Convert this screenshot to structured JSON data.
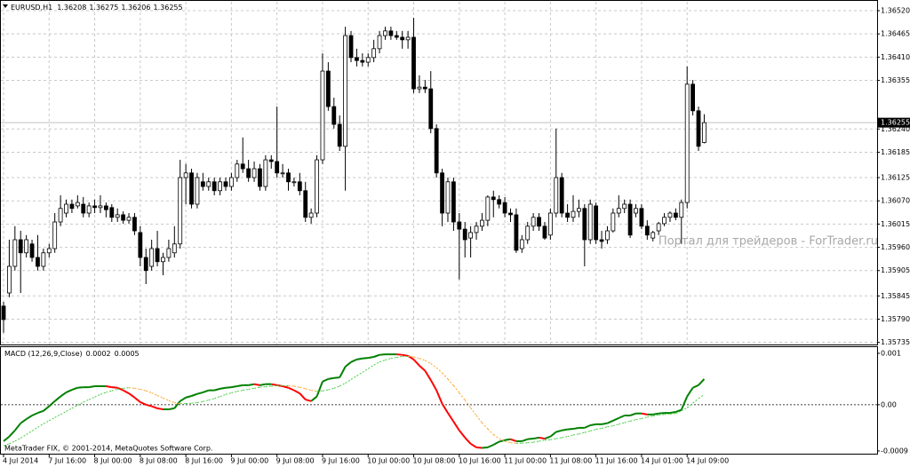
{
  "footer": "MetaTrader FIX, © 2001-2014, MetaQuotes Software Corp.",
  "chart_data": [
    {
      "type": "candlestick",
      "title": "EURUSD,H1",
      "categories": [
        "4 Jul 2014",
        null,
        null,
        null,
        null,
        null,
        null,
        null,
        "7 Jul 16:00",
        null,
        null,
        null,
        null,
        null,
        null,
        null,
        "8 Jul 00:00",
        null,
        null,
        null,
        null,
        null,
        null,
        null,
        "8 Jul 08:00",
        null,
        null,
        null,
        null,
        null,
        null,
        null,
        "8 Jul 16:00",
        null,
        null,
        null,
        null,
        null,
        null,
        null,
        "9 Jul 00:00",
        null,
        null,
        null,
        null,
        null,
        null,
        null,
        "9 Jul 08:00",
        null,
        null,
        null,
        null,
        null,
        null,
        null,
        "9 Jul 16:00",
        null,
        null,
        null,
        null,
        null,
        null,
        null,
        "10 Jul 00:00",
        null,
        null,
        null,
        null,
        null,
        null,
        null,
        "10 Jul 08:00",
        null,
        null,
        null,
        null,
        null,
        null,
        null,
        "10 Jul 16:00",
        null,
        null,
        null,
        null,
        null,
        null,
        null,
        "11 Jul 00:00",
        null,
        null,
        null,
        null,
        null,
        null,
        null,
        "11 Jul 08:00",
        null,
        null,
        null,
        null,
        null,
        null,
        null,
        "11 Jul 16:00",
        null,
        null,
        null,
        null,
        null,
        null,
        null,
        "14 Jul 01:00",
        null,
        null,
        null,
        null,
        null,
        null,
        null,
        "14 Jul 09:00",
        null,
        null,
        null
      ],
      "open": [
        1.35821,
        1.35852,
        1.35915,
        1.35978,
        1.35947,
        1.35968,
        1.35936,
        1.35915,
        1.35947,
        1.35957,
        1.3602,
        1.36041,
        1.36062,
        1.36058,
        1.36062,
        1.36041,
        1.36058,
        1.36054,
        1.36058,
        1.36054,
        1.36031,
        1.36037,
        1.36024,
        1.36031,
        1.35995,
        1.35936,
        1.35915,
        1.35957,
        1.35926,
        1.35936,
        1.35947,
        1.35968,
        1.36125,
        1.36136,
        1.36062,
        1.36115,
        1.36104,
        1.36115,
        1.36094,
        1.36115,
        1.36104,
        1.36125,
        1.36157,
        1.36146,
        1.36125,
        1.36146,
        1.36104,
        1.36167,
        1.36163,
        1.36136,
        1.36136,
        1.36115,
        1.36115,
        1.36094,
        1.36031,
        1.36041,
        1.36167,
        1.36377,
        1.36293,
        1.36251,
        1.36199,
        1.36461,
        1.36409,
        1.36402,
        1.36398,
        1.36409,
        1.3643,
        1.36461,
        1.36472,
        1.36461,
        1.36457,
        1.36451,
        1.36457,
        1.36335,
        1.36339,
        1.36335,
        1.36241,
        1.36136,
        1.36041,
        1.36115,
        1.3602,
        1.36003,
        1.35982,
        1.35995,
        1.3601,
        1.36024,
        1.36079,
        1.36073,
        1.36066,
        1.36041,
        1.36037,
        1.35957,
        1.35978,
        1.3601,
        1.36031,
        1.3601,
        1.35989,
        1.36041,
        1.36125,
        1.36041,
        1.36031,
        1.36045,
        1.36052,
        1.35978,
        1.36058,
        1.35978,
        1.35978,
        1.35999,
        1.36041,
        1.36052,
        1.36062,
        1.36041,
        1.36052,
        1.3601,
        1.35982,
        1.35999,
        1.36016,
        1.36031,
        1.36041,
        1.36031,
        1.36066,
        1.36346,
        1.36283,
        1.36208
      ],
      "high": [
        1.35831,
        1.35978,
        1.3601,
        1.35999,
        1.35989,
        1.35978,
        1.35989,
        1.35957,
        1.35968,
        1.36041,
        1.36083,
        1.36073,
        1.36073,
        1.36083,
        1.36079,
        1.36066,
        1.36073,
        1.36083,
        1.36066,
        1.36062,
        1.36052,
        1.36045,
        1.36041,
        1.36041,
        1.3601,
        1.35957,
        1.35978,
        1.35999,
        1.35947,
        1.35978,
        1.3601,
        1.36167,
        1.36157,
        1.36146,
        1.36136,
        1.36136,
        1.36125,
        1.36125,
        1.36125,
        1.36125,
        1.36136,
        1.36167,
        1.3622,
        1.36167,
        1.36163,
        1.36157,
        1.36178,
        1.36178,
        1.36293,
        1.36157,
        1.36146,
        1.36125,
        1.36136,
        1.36115,
        1.36052,
        1.36178,
        1.36419,
        1.36398,
        1.36314,
        1.36272,
        1.36482,
        1.36472,
        1.3643,
        1.36419,
        1.36419,
        1.36451,
        1.36472,
        1.36482,
        1.36482,
        1.36472,
        1.36472,
        1.36472,
        1.36503,
        1.36367,
        1.36356,
        1.36377,
        1.36251,
        1.36146,
        1.36125,
        1.36125,
        1.36041,
        1.3602,
        1.3601,
        1.3602,
        1.36041,
        1.36083,
        1.36094,
        1.36083,
        1.36079,
        1.36052,
        1.36052,
        1.35989,
        1.3602,
        1.36041,
        1.36041,
        1.3602,
        1.36052,
        1.36241,
        1.36136,
        1.36062,
        1.36083,
        1.36073,
        1.36062,
        1.36073,
        1.36066,
        1.35999,
        1.3601,
        1.36052,
        1.36083,
        1.36073,
        1.36073,
        1.36062,
        1.36062,
        1.36024,
        1.35999,
        1.3602,
        1.36041,
        1.36045,
        1.36052,
        1.36073,
        1.36388,
        1.36356,
        1.36293,
        1.36275
      ],
      "low": [
        1.35758,
        1.35842,
        1.35905,
        1.35852,
        1.35936,
        1.35926,
        1.35905,
        1.35905,
        1.35936,
        1.35947,
        1.3601,
        1.36031,
        1.36041,
        1.36052,
        1.36031,
        1.36031,
        1.36041,
        1.36041,
        1.36031,
        1.3602,
        1.3602,
        1.36016,
        1.36016,
        1.35989,
        1.35915,
        1.35873,
        1.35905,
        1.35915,
        1.35894,
        1.35926,
        1.35936,
        1.35957,
        1.36062,
        1.36052,
        1.36052,
        1.36094,
        1.36094,
        1.36083,
        1.36083,
        1.36094,
        1.36094,
        1.36115,
        1.36136,
        1.36115,
        1.36115,
        1.36094,
        1.36094,
        1.36146,
        1.36125,
        1.36125,
        1.36094,
        1.36104,
        1.36083,
        1.3602,
        1.36016,
        1.36031,
        1.36157,
        1.36283,
        1.36241,
        1.36188,
        1.36094,
        1.36398,
        1.36388,
        1.36388,
        1.36388,
        1.36398,
        1.36419,
        1.36451,
        1.36451,
        1.36451,
        1.3643,
        1.3643,
        1.36325,
        1.36325,
        1.36325,
        1.3623,
        1.36125,
        1.3601,
        1.3602,
        1.35999,
        1.35884,
        1.35936,
        1.35936,
        1.35978,
        1.35999,
        1.3601,
        1.36031,
        1.36052,
        1.36031,
        1.3602,
        1.35947,
        1.35947,
        1.35968,
        1.35999,
        1.35999,
        1.35978,
        1.35978,
        1.36031,
        1.36031,
        1.3602,
        1.3602,
        1.36031,
        1.35915,
        1.35968,
        1.35968,
        1.35957,
        1.35968,
        1.35995,
        1.36031,
        1.36041,
        1.35982,
        1.36031,
        1.36003,
        1.35978,
        1.35974,
        1.35989,
        1.3601,
        1.3602,
        1.36024,
        1.35968,
        1.36052,
        1.36272,
        1.36188,
        1.36206
      ],
      "close": [
        1.35789,
        1.35915,
        1.35978,
        1.35947,
        1.35978,
        1.35936,
        1.35915,
        1.35947,
        1.35957,
        1.3602,
        1.36052,
        1.36062,
        1.36052,
        1.36066,
        1.36041,
        1.36058,
        1.36054,
        1.36058,
        1.36049,
        1.36031,
        1.36037,
        1.36024,
        1.36031,
        1.35999,
        1.35936,
        1.35905,
        1.35957,
        1.35926,
        1.35936,
        1.35957,
        1.35968,
        1.36125,
        1.36136,
        1.36062,
        1.36125,
        1.36104,
        1.36115,
        1.36094,
        1.36115,
        1.36104,
        1.36125,
        1.36157,
        1.36146,
        1.36125,
        1.36146,
        1.36104,
        1.36167,
        1.36163,
        1.36136,
        1.36136,
        1.36115,
        1.36115,
        1.36094,
        1.36031,
        1.36041,
        1.36167,
        1.36377,
        1.36293,
        1.36251,
        1.36199,
        1.36461,
        1.36409,
        1.36402,
        1.36398,
        1.36409,
        1.3643,
        1.36461,
        1.36472,
        1.36461,
        1.36457,
        1.36451,
        1.36457,
        1.36335,
        1.36339,
        1.36335,
        1.36241,
        1.36136,
        1.36041,
        1.36115,
        1.3602,
        1.36003,
        1.35978,
        1.35995,
        1.3601,
        1.36024,
        1.36079,
        1.36073,
        1.36062,
        1.36041,
        1.36037,
        1.35953,
        1.35978,
        1.3601,
        1.36031,
        1.3601,
        1.35982,
        1.36041,
        1.36125,
        1.36041,
        1.36031,
        1.36045,
        1.36052,
        1.35978,
        1.36062,
        1.35978,
        1.35974,
        1.35999,
        1.36041,
        1.36052,
        1.36062,
        1.35989,
        1.36052,
        1.3601,
        1.35989,
        1.35995,
        1.36016,
        1.36031,
        1.36041,
        1.36031,
        1.36066,
        1.36346,
        1.36283,
        1.36199,
        1.36255
      ],
      "bull_color": "#ffffff",
      "bear_color": "#000000",
      "wick_color": "#000000",
      "ylim": [
        1.35728,
        1.36541
      ],
      "yticks": [
        {
          "value": 1.3652,
          "label": "1.36520"
        },
        1.36465,
        {
          "value": 1.3641,
          "label": "1.36410"
        },
        1.36355,
        {
          "value": 1.3624,
          "label": "1.36240"
        },
        1.36185,
        1.36125,
        {
          "value": 1.3607,
          "label": "1.36070"
        },
        1.36015,
        {
          "value": 1.3596,
          "label": "1.35960"
        },
        1.35905,
        1.35845,
        {
          "value": 1.3579,
          "label": "1.35790"
        },
        1.35735
      ],
      "grid": true,
      "grid_color": "#c8c8c8",
      "price_line_color": "#c0c0c0",
      "watermark": "Портал для трейдеров - ForTrader.ru"
    },
    {
      "type": "macd",
      "title": "MACD (12,26,9,Close)",
      "series": [
        {
          "values": [
            -0.00071,
            -0.00062,
            -0.0005,
            -0.00036,
            -0.00028,
            -0.00021,
            -0.00016,
            -0.00012,
            -3e-05,
            7e-05,
            0.00016,
            0.00024,
            0.00029,
            0.00033,
            0.00034,
            0.00034,
            0.00036,
            0.00036,
            0.00036,
            0.00034,
            0.00033,
            0.00028,
            0.00022,
            0.00014,
            5e-05,
            0,
            -3e-05,
            -7e-05,
            -9e-05,
            -9e-05,
            -7e-05,
            7e-05,
            0.00014,
            0.00017,
            0.00021,
            0.00024,
            0.00028,
            0.00028,
            0.00031,
            0.00033,
            0.00034,
            0.00036,
            0.00038,
            0.00038,
            0.0004,
            0.00038,
            0.0004,
            0.0004,
            0.00038,
            0.00036,
            0.00033,
            0.00028,
            0.00022,
            0.0001,
            7e-05,
            0.00016,
            0.00045,
            0.0005,
            0.00052,
            0.00053,
            0.00074,
            0.00083,
            0.00088,
            0.0009,
            0.00091,
            0.00093,
            0.00097,
            0.00098,
            0.00098,
            0.00098,
            0.00097,
            0.00095,
            0.00088,
            0.00076,
            0.00066,
            0.00048,
            0.00028,
            2e-05,
            -0.00016,
            -0.00033,
            -0.0005,
            -0.00064,
            -0.00076,
            -0.00083,
            -0.00084,
            -0.00083,
            -0.00078,
            -0.00072,
            -0.00069,
            -0.00067,
            -0.00071,
            -0.00071,
            -0.00067,
            -0.00066,
            -0.00064,
            -0.00066,
            -0.00062,
            -0.00053,
            -0.0005,
            -0.00048,
            -0.00047,
            -0.00045,
            -0.00045,
            -0.0004,
            -0.00038,
            -0.00038,
            -0.00036,
            -0.00031,
            -0.00026,
            -0.00021,
            -0.00021,
            -0.00017,
            -0.00017,
            -0.00019,
            -0.00019,
            -0.00017,
            -0.00016,
            -0.00016,
            -0.00014,
            -0.0001,
            0.00016,
            0.00033,
            0.00038,
            0.0005
          ],
          "up_color": "#008000",
          "down_color": "#ff0000",
          "style": "solid"
        },
        {
          "values": [
            -0.0008,
            -0.00076,
            -0.00071,
            -0.00065,
            -0.00058,
            -0.00051,
            -0.00044,
            -0.00037,
            -0.00031,
            -0.00025,
            -0.00019,
            -0.00013,
            -7e-05,
            -1e-05,
            5e-05,
            0.0001,
            0.00015,
            0.0002,
            0.00024,
            0.00027,
            0.0003,
            0.00032,
            0.00033,
            0.00032,
            0.0003,
            0.00027,
            0.00023,
            0.00018,
            0.00013,
            8e-05,
            4e-05,
            2e-05,
            2e-05,
            3e-05,
            4e-05,
            6e-05,
            9e-05,
            0.00012,
            0.00016,
            0.0002,
            0.00023,
            0.00026,
            0.00028,
            0.0003,
            0.00032,
            0.00034,
            0.00035,
            0.00036,
            0.00037,
            0.00037,
            0.00037,
            0.00036,
            0.00034,
            0.00031,
            0.00028,
            0.00026,
            0.00027,
            0.00029,
            0.00032,
            0.00036,
            0.00042,
            0.00049,
            0.00056,
            0.00063,
            0.0007,
            0.00077,
            0.00083,
            0.00087,
            0.0009,
            0.00092,
            0.00094,
            0.00094,
            0.00093,
            0.0009,
            0.00086,
            0.0008,
            0.00072,
            0.00062,
            0.0005,
            0.00037,
            0.00023,
            9e-05,
            -6e-05,
            -0.00021,
            -0.00035,
            -0.00047,
            -0.00058,
            -0.00066,
            -0.00071,
            -0.00074,
            -0.00075,
            -0.00075,
            -0.00074,
            -0.00073,
            -0.00071,
            -0.00069,
            -0.00068,
            -0.00066,
            -0.00064,
            -0.00062,
            -0.00059,
            -0.00057,
            -0.00054,
            -0.00051,
            -0.00048,
            -0.00046,
            -0.00043,
            -0.00041,
            -0.00038,
            -0.00035,
            -0.00032,
            -0.00029,
            -0.00027,
            -0.00024,
            -0.00022,
            -0.0002,
            -0.00019,
            -0.00018,
            -0.00017,
            -0.00012,
            -6e-05,
            3e-05,
            0.00012,
            0.0002
          ],
          "up_color": "#44cc44",
          "down_color": "#ffa020",
          "style": "dashed"
        }
      ],
      "ylim": [
        -0.00097,
        0.00112
      ],
      "yticks": [
        0.001,
        {
          "value": 0,
          "label": "0.00"
        },
        -0.0009
      ],
      "zero_line": true
    }
  ]
}
